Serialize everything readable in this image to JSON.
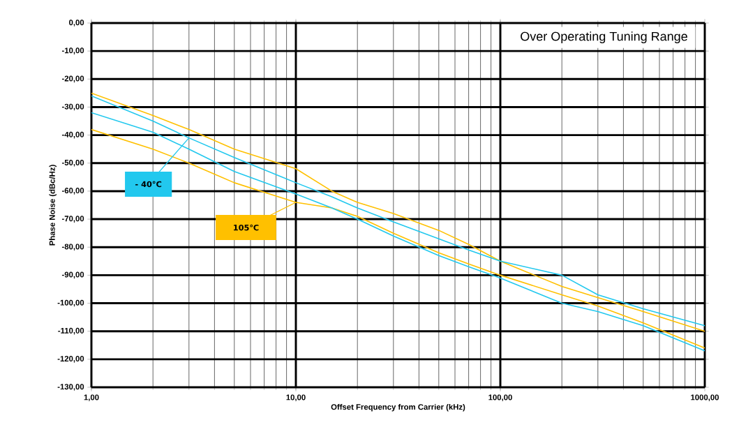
{
  "chart_data": {
    "type": "line",
    "xlabel": "Offset Frequency from Carrier (kHz)",
    "ylabel": "Phase Noise (dBc/Hz)",
    "annotations": [
      "Over Operating Tuning Range"
    ],
    "log": "x",
    "grid": true,
    "line_style": "solid",
    "marker": "none",
    "xlim": [
      1,
      1000
    ],
    "ylim": [
      -130,
      0
    ],
    "xticks": [
      {
        "value": 1,
        "label": "1,00"
      },
      {
        "value": 10,
        "label": "10,00"
      },
      {
        "value": 100,
        "label": "100,00"
      },
      {
        "value": 1000,
        "label": "1000,00"
      }
    ],
    "yticks": [
      {
        "value": -130,
        "label": "-130,00"
      },
      {
        "value": -120,
        "label": "-120,00"
      },
      {
        "value": -110,
        "label": "-110,00"
      },
      {
        "value": -100,
        "label": "-100,00"
      },
      {
        "value": -90,
        "label": "-90,00"
      },
      {
        "value": -80,
        "label": "-80,00"
      },
      {
        "value": -70,
        "label": "-70,00"
      },
      {
        "value": -60,
        "label": "-60,00"
      },
      {
        "value": -50,
        "label": "-50,00"
      },
      {
        "value": -40,
        "label": "-40,00"
      },
      {
        "value": -30,
        "label": "-30,00"
      },
      {
        "value": -20,
        "label": "-20,00"
      },
      {
        "value": -10,
        "label": "-10,00"
      },
      {
        "value": 0,
        "label": "0,00"
      }
    ],
    "x": [
      1,
      2,
      3,
      5,
      10,
      15,
      20,
      30,
      50,
      70,
      100,
      200,
      300,
      500,
      1000
    ],
    "series": [
      {
        "color": "#ffc000",
        "values": [
          -25,
          -33,
          -38,
          -45,
          -52,
          -60,
          -64,
          -68,
          -74,
          -79,
          -85,
          -94,
          -98,
          -103,
          -110
        ]
      },
      {
        "name": "105℃",
        "color": "#ffc000",
        "values": [
          -38,
          -45,
          -50,
          -57,
          -64,
          -66,
          -69,
          -75,
          -82,
          -86,
          -90,
          -97,
          -101,
          -107,
          -116
        ]
      },
      {
        "name": "- 40°C",
        "color": "#22c8ee",
        "values": [
          -26,
          -35,
          -41,
          -48,
          -57,
          -62,
          -66,
          -71,
          -77,
          -81,
          -85,
          -90,
          -97,
          -102,
          -108
        ]
      },
      {
        "color": "#22c8ee",
        "values": [
          -32,
          -39,
          -45,
          -53,
          -61,
          -66,
          -70,
          -76,
          -83,
          -87,
          -91,
          -100,
          -103,
          -108,
          -117
        ]
      }
    ]
  }
}
